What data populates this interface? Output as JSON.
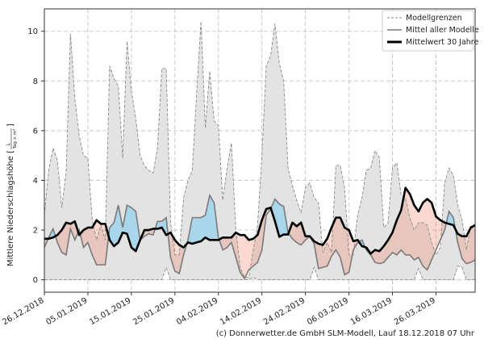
{
  "chart_data": {
    "type": "area",
    "title": "",
    "ylabel": "Mittlere Niederschlagshöhe [",
    "ylabel_unit_numerator": "L",
    "ylabel_unit_denominator": "Tag × m²",
    "ylabel_close": "]",
    "ylim": [
      -0.5,
      10.9
    ],
    "yticks": [
      0,
      2,
      4,
      6,
      8,
      10
    ],
    "x_start_label": "26.12.2018",
    "x_days": 99,
    "xticks": [
      {
        "day": 0,
        "label": "26.12.2018"
      },
      {
        "day": 10,
        "label": "05.01.2019"
      },
      {
        "day": 20,
        "label": "15.01.2019"
      },
      {
        "day": 30,
        "label": "25.01.2019"
      },
      {
        "day": 40,
        "label": "04.02.2019"
      },
      {
        "day": 50,
        "label": "14.02.2019"
      },
      {
        "day": 60,
        "label": "24.02.2019"
      },
      {
        "day": 70,
        "label": "06.03.2019"
      },
      {
        "day": 80,
        "label": "16.03.2019"
      },
      {
        "day": 90,
        "label": "26.03.2019"
      }
    ],
    "grid": true,
    "legend_position": "top-right",
    "series": [
      {
        "name": "Modellgrenzen",
        "role": "max",
        "values": [
          2.6,
          4.4,
          5.3,
          4.8,
          2.9,
          4.3,
          9.9,
          7.3,
          5.8,
          5.0,
          4.9,
          2.4,
          1.6,
          2.2,
          1.6,
          8.6,
          8.1,
          7.8,
          4.9,
          9.6,
          7.6,
          6.5,
          5.0,
          4.6,
          4.4,
          4.3,
          5.3,
          8.5,
          8.5,
          2.3,
          1.0,
          1.0,
          3.3,
          4.0,
          4.4,
          7.5,
          10.4,
          6.1,
          8.4,
          6.4,
          6.2,
          3.2,
          4.5,
          5.5,
          2.0,
          0.5,
          0.1,
          0.1,
          1.2,
          2.2,
          5.0,
          8.6,
          9.0,
          10.3,
          8.7,
          8.0,
          4.5,
          3.8,
          3.2,
          2.7,
          3.7,
          3.9,
          3.3,
          3.1,
          1.1,
          1.5,
          1.1,
          4.6,
          4.6,
          3.7,
          1.0,
          1.0,
          2.6,
          3.3,
          4.4,
          4.5,
          5.2,
          4.9,
          2.1,
          2.3,
          4.5,
          4.7,
          3.4,
          3.3,
          2.5,
          2.0,
          2.3,
          2.3,
          2.2,
          1.5,
          1.0,
          1.3,
          3.9,
          4.5,
          4.2,
          3.0,
          2.4,
          1.2,
          2.2,
          2.0
        ]
      },
      {
        "name": "Modellgrenzen",
        "role": "min",
        "values": [
          0,
          0,
          0,
          0,
          0,
          0,
          0,
          0,
          0,
          0,
          0,
          0,
          0,
          0,
          0,
          0,
          0,
          0,
          0,
          0,
          0,
          0,
          0,
          0,
          0,
          0,
          0,
          0,
          0.5,
          0,
          0,
          0,
          0,
          0,
          0,
          0,
          0,
          0,
          0,
          0,
          0,
          0,
          0,
          0,
          0,
          0,
          0,
          0,
          0.1,
          0,
          0,
          0,
          0,
          0,
          0,
          0,
          0,
          0,
          0,
          0,
          0,
          0,
          0.5,
          0,
          0,
          0,
          0,
          0,
          0,
          0,
          0,
          0,
          0,
          0,
          0,
          0,
          0,
          0,
          0,
          0,
          0,
          0,
          0,
          0,
          0,
          0,
          0.45,
          0,
          0,
          0,
          0,
          0,
          0,
          0,
          0,
          0.55,
          0.5,
          0,
          0,
          0
        ]
      },
      {
        "name": "Mittel aller Modelle",
        "role": "mean",
        "values": [
          1.3,
          1.7,
          2.05,
          1.5,
          1.1,
          1.0,
          2.05,
          1.6,
          2.0,
          1.3,
          1.5,
          1.0,
          0.6,
          0.6,
          0.6,
          2.1,
          2.3,
          3.0,
          2.1,
          3.0,
          2.9,
          2.75,
          1.6,
          1.75,
          1.85,
          1.8,
          2.35,
          2.35,
          2.5,
          0.9,
          0.35,
          0.25,
          1.0,
          1.6,
          2.5,
          2.5,
          2.5,
          2.6,
          3.4,
          3.1,
          1.7,
          1.2,
          1.3,
          1.5,
          0.9,
          0.3,
          0.05,
          0.4,
          0.55,
          0.7,
          1.2,
          2.6,
          2.85,
          3.25,
          3.05,
          2.95,
          1.9,
          1.65,
          1.5,
          1.4,
          1.6,
          1.75,
          1.45,
          0.45,
          0.5,
          0.55,
          0.95,
          1.2,
          0.9,
          0.2,
          0.3,
          1.2,
          1.5,
          1.6,
          1.2,
          1.0,
          0.7,
          0.65,
          0.7,
          0.9,
          1.1,
          1.0,
          1.2,
          1.0,
          1.0,
          0.8,
          0.9,
          0.55,
          0.4,
          0.8,
          1.2,
          1.6,
          2.0,
          2.75,
          2.5,
          1.5,
          0.85,
          0.65,
          0.7,
          0.8
        ]
      },
      {
        "name": "Mittelwert 30 Jahre",
        "role": "climatology",
        "values": [
          1.65,
          1.65,
          1.7,
          1.8,
          2.0,
          2.3,
          2.25,
          2.35,
          1.8,
          2.0,
          2.1,
          2.1,
          2.4,
          2.25,
          2.25,
          1.6,
          1.35,
          1.5,
          1.9,
          1.85,
          1.3,
          1.15,
          1.6,
          2.0,
          2.0,
          2.05,
          2.05,
          2.1,
          1.8,
          1.9,
          1.6,
          1.4,
          1.3,
          1.5,
          1.45,
          1.5,
          1.55,
          1.7,
          1.6,
          1.6,
          1.6,
          1.7,
          1.7,
          1.7,
          1.9,
          1.8,
          1.8,
          1.6,
          1.65,
          1.8,
          2.4,
          2.85,
          2.9,
          2.35,
          1.73,
          1.82,
          1.82,
          2.3,
          2.15,
          2.3,
          1.75,
          1.75,
          1.55,
          1.45,
          1.4,
          1.65,
          2.1,
          2.5,
          2.5,
          2.1,
          2.0,
          1.55,
          1.6,
          1.35,
          1.3,
          1.05,
          1.2,
          1.15,
          1.35,
          1.6,
          1.9,
          2.4,
          2.8,
          3.7,
          3.45,
          3.0,
          2.75,
          3.1,
          3.25,
          3.1,
          2.55,
          2.4,
          2.3,
          2.25,
          2.2,
          1.85,
          1.75,
          1.75,
          2.1,
          2.2
        ]
      }
    ],
    "colors": {
      "envelope_fill": "#e3e3e3",
      "envelope_line": "#8a8a8a",
      "mean_line": "#7a7a7a",
      "climatology_line": "#000000",
      "above_fill": "#a8d6ea",
      "below_fill": "rgba(240,140,115,0.33)"
    }
  },
  "footer": "(c) Donnerwetter.de GmbH SLM-Modell, Lauf 18.12.2018 07 Uhr"
}
